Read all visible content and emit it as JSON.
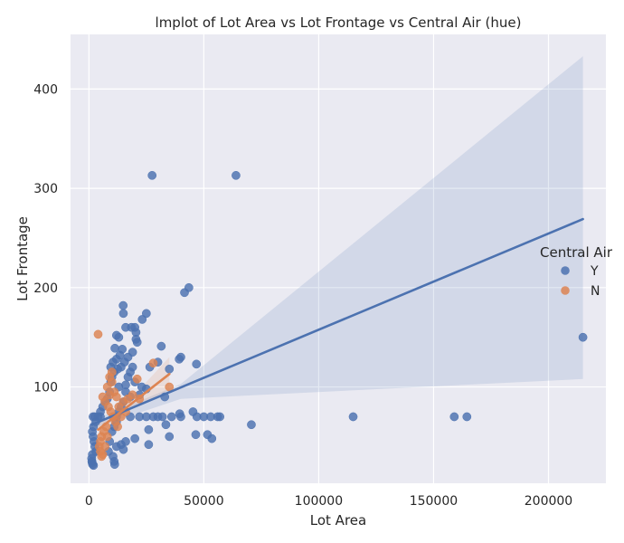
{
  "chart_data": {
    "type": "scatter",
    "title": "lmplot of Lot Area vs Lot Frontage vs Central Air (hue)",
    "xlabel": "Lot Area",
    "ylabel": "Lot Frontage",
    "xlim": [
      -8000,
      225000
    ],
    "ylim": [
      3,
      455
    ],
    "xticks": [
      0,
      50000,
      100000,
      150000,
      200000
    ],
    "yticks": [
      100,
      200,
      300,
      400
    ],
    "grid": true,
    "legend": {
      "title": "Central Air",
      "placement": "right",
      "entries": [
        "Y",
        "N"
      ]
    },
    "colors": {
      "Y": "#4c72b0",
      "N": "#dd8452",
      "background": "#eaeaf2",
      "grid": "#ffffff"
    },
    "series": [
      {
        "name": "Y",
        "points": [
          [
            27500,
            313
          ],
          [
            64000,
            313
          ],
          [
            43500,
            200
          ],
          [
            41600,
            195
          ],
          [
            215000,
            150
          ],
          [
            14900,
            182
          ],
          [
            15000,
            174
          ],
          [
            25000,
            174
          ],
          [
            23200,
            168
          ],
          [
            16000,
            160
          ],
          [
            18500,
            160
          ],
          [
            20000,
            160
          ],
          [
            20500,
            155
          ],
          [
            20500,
            148
          ],
          [
            21000,
            145
          ],
          [
            12000,
            152
          ],
          [
            13000,
            150
          ],
          [
            31500,
            141
          ],
          [
            11300,
            139
          ],
          [
            40000,
            130
          ],
          [
            39300,
            128
          ],
          [
            30000,
            125
          ],
          [
            46800,
            123
          ],
          [
            35000,
            118
          ],
          [
            26500,
            120
          ],
          [
            19000,
            135
          ],
          [
            17000,
            130
          ],
          [
            15500,
            125
          ],
          [
            14000,
            120
          ],
          [
            12500,
            118
          ],
          [
            11000,
            115
          ],
          [
            10000,
            110
          ],
          [
            9500,
            105
          ],
          [
            13000,
            100
          ],
          [
            16000,
            102
          ],
          [
            20000,
            105
          ],
          [
            23000,
            100
          ],
          [
            25000,
            98
          ],
          [
            22000,
            92
          ],
          [
            18000,
            90
          ],
          [
            33000,
            90
          ],
          [
            9000,
            95
          ],
          [
            8000,
            88
          ],
          [
            7000,
            85
          ],
          [
            6000,
            80
          ],
          [
            5000,
            75
          ],
          [
            4000,
            70
          ],
          [
            3000,
            65
          ],
          [
            2000,
            60
          ],
          [
            1500,
            55
          ],
          [
            1800,
            50
          ],
          [
            2200,
            45
          ],
          [
            2600,
            40
          ],
          [
            3000,
            35
          ],
          [
            1500,
            32
          ],
          [
            1200,
            28
          ],
          [
            1300,
            25
          ],
          [
            1400,
            24
          ],
          [
            1600,
            22
          ],
          [
            2000,
            21
          ],
          [
            1800,
            70
          ],
          [
            2500,
            70
          ],
          [
            5000,
            70
          ],
          [
            12000,
            70
          ],
          [
            18000,
            70
          ],
          [
            22000,
            70
          ],
          [
            25000,
            70
          ],
          [
            28000,
            70
          ],
          [
            30000,
            70
          ],
          [
            32000,
            70
          ],
          [
            36000,
            70
          ],
          [
            40000,
            70
          ],
          [
            47000,
            70
          ],
          [
            50000,
            70
          ],
          [
            53000,
            70
          ],
          [
            56000,
            70
          ],
          [
            57000,
            70
          ],
          [
            115000,
            70
          ],
          [
            159000,
            70
          ],
          [
            164500,
            70
          ],
          [
            39500,
            73
          ],
          [
            45300,
            75
          ],
          [
            33500,
            62
          ],
          [
            70700,
            62
          ],
          [
            26000,
            57
          ],
          [
            46500,
            52
          ],
          [
            51600,
            52
          ],
          [
            53500,
            48
          ],
          [
            35000,
            50
          ],
          [
            20000,
            48
          ],
          [
            16000,
            45
          ],
          [
            12000,
            40
          ],
          [
            14000,
            42
          ],
          [
            26000,
            42
          ],
          [
            15000,
            37
          ],
          [
            10500,
            30
          ],
          [
            11000,
            25
          ],
          [
            11200,
            22
          ],
          [
            8500,
            35
          ],
          [
            9000,
            45
          ],
          [
            10000,
            55
          ],
          [
            11000,
            60
          ],
          [
            12000,
            65
          ],
          [
            13000,
            75
          ],
          [
            14000,
            80
          ],
          [
            15000,
            85
          ],
          [
            16000,
            95
          ],
          [
            17000,
            110
          ],
          [
            18000,
            115
          ],
          [
            19000,
            120
          ],
          [
            12000,
            128
          ],
          [
            13500,
            132
          ],
          [
            14500,
            138
          ],
          [
            10500,
            125
          ],
          [
            9500,
            120
          ]
        ],
        "fit_line": [
          [
            1300,
            62
          ],
          [
            215000,
            269
          ]
        ],
        "ci_upper": [
          [
            1300,
            66
          ],
          [
            40000,
            103
          ],
          [
            215000,
            433
          ]
        ],
        "ci_lower": [
          [
            1300,
            58
          ],
          [
            40000,
            88
          ],
          [
            215000,
            108
          ]
        ]
      },
      {
        "name": "N",
        "points": [
          [
            4000,
            153
          ],
          [
            28000,
            124
          ],
          [
            35000,
            100
          ],
          [
            6000,
            90
          ],
          [
            8000,
            100
          ],
          [
            9000,
            110
          ],
          [
            10000,
            105
          ],
          [
            11000,
            95
          ],
          [
            12000,
            90
          ],
          [
            7000,
            85
          ],
          [
            8500,
            80
          ],
          [
            9500,
            75
          ],
          [
            10500,
            70
          ],
          [
            11500,
            65
          ],
          [
            12500,
            60
          ],
          [
            7500,
            60
          ],
          [
            6500,
            55
          ],
          [
            5500,
            50
          ],
          [
            5000,
            45
          ],
          [
            4500,
            40
          ],
          [
            5000,
            35
          ],
          [
            6000,
            32
          ],
          [
            5500,
            30
          ],
          [
            7000,
            40
          ],
          [
            8000,
            50
          ],
          [
            13000,
            80
          ],
          [
            15000,
            85
          ],
          [
            17000,
            88
          ],
          [
            19000,
            92
          ],
          [
            21000,
            108
          ],
          [
            22000,
            88
          ],
          [
            14000,
            70
          ],
          [
            16000,
            75
          ],
          [
            10000,
            115
          ],
          [
            9000,
            92
          ]
        ],
        "fit_line": [
          [
            4000,
            57
          ],
          [
            35000,
            113
          ]
        ],
        "ci_upper": [
          [
            4000,
            63
          ],
          [
            15000,
            80
          ],
          [
            35000,
            130
          ]
        ],
        "ci_lower": [
          [
            4000,
            50
          ],
          [
            15000,
            74
          ],
          [
            35000,
            97
          ]
        ]
      }
    ]
  }
}
